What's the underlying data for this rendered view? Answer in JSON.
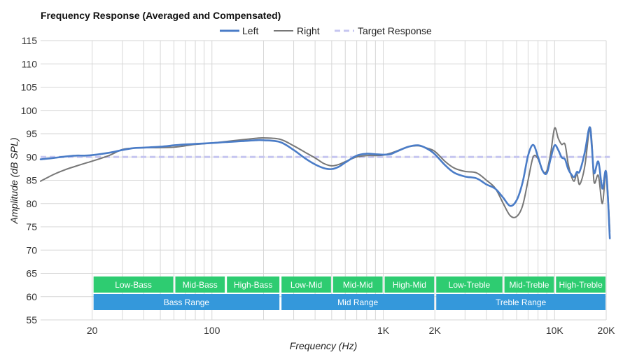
{
  "chart_data": {
    "type": "line",
    "title": "Frequency Response (Averaged and Compensated)",
    "xlabel": "Frequency (Hz)",
    "ylabel": "Amplitude (dB SPL)",
    "x_scale": "log",
    "xlim": [
      10,
      20000
    ],
    "ylim": [
      55,
      115
    ],
    "yticks": [
      55,
      60,
      65,
      70,
      75,
      80,
      85,
      90,
      95,
      100,
      105,
      110,
      115
    ],
    "xticks": [
      {
        "value": 20,
        "label": "20"
      },
      {
        "value": 100,
        "label": "100"
      },
      {
        "value": 1000,
        "label": "1K"
      },
      {
        "value": 2000,
        "label": "2K"
      },
      {
        "value": 10000,
        "label": "10K"
      },
      {
        "value": 20000,
        "label": "20K"
      }
    ],
    "grid": true,
    "legend_position": "top",
    "colors": {
      "left": "#4a7cc7",
      "right": "#777777",
      "target": "#c6c6f0",
      "band_green": "#2ecc71",
      "band_blue": "#3498db"
    },
    "series": [
      {
        "name": "Left",
        "x": [
          10,
          12,
          14,
          16,
          18,
          20,
          25,
          30,
          35,
          40,
          50,
          60,
          70,
          80,
          100,
          120,
          150,
          180,
          200,
          250,
          300,
          350,
          400,
          450,
          500,
          550,
          600,
          700,
          800,
          900,
          1000,
          1100,
          1200,
          1400,
          1600,
          1800,
          2000,
          2300,
          2600,
          3000,
          3500,
          4000,
          4500,
          5000,
          5500,
          6000,
          6500,
          7000,
          7500,
          8000,
          8500,
          9000,
          9500,
          10000,
          10500,
          11000,
          11500,
          12000,
          12500,
          13000,
          13500,
          14000,
          15000,
          16000,
          16500,
          17000,
          18000,
          19000,
          20000,
          21000
        ],
        "values": [
          89.5,
          89.8,
          90.1,
          90.3,
          90.3,
          90.4,
          90.9,
          91.5,
          91.9,
          92.0,
          92.2,
          92.5,
          92.7,
          92.8,
          93.0,
          93.2,
          93.4,
          93.6,
          93.6,
          93.2,
          91.5,
          89.7,
          88.4,
          87.6,
          87.4,
          87.9,
          88.8,
          90.3,
          90.7,
          90.6,
          90.5,
          90.6,
          91.2,
          92.2,
          92.5,
          91.8,
          90.6,
          88.2,
          86.6,
          85.8,
          85.4,
          84.1,
          83.2,
          81.3,
          79.5,
          80.7,
          84.5,
          90.3,
          92.6,
          90.0,
          87.1,
          86.5,
          89.8,
          92.5,
          91.5,
          89.9,
          89.5,
          87.4,
          86.3,
          85.7,
          86.8,
          86.9,
          91.0,
          96.4,
          92.0,
          86.5,
          89.0,
          83.2,
          86.7,
          72.5
        ]
      },
      {
        "name": "Right",
        "x": [
          10,
          12,
          14,
          16,
          18,
          20,
          25,
          30,
          35,
          40,
          50,
          60,
          70,
          80,
          100,
          120,
          150,
          180,
          200,
          250,
          300,
          350,
          400,
          450,
          500,
          550,
          600,
          700,
          800,
          900,
          1000,
          1100,
          1200,
          1400,
          1600,
          1800,
          2000,
          2300,
          2600,
          3000,
          3500,
          4000,
          4500,
          5000,
          5500,
          6000,
          6500,
          7000,
          7500,
          8000,
          8500,
          9000,
          9500,
          10000,
          10500,
          11000,
          11500,
          12000,
          12500,
          13000,
          13500,
          14000,
          15000,
          16000,
          16500,
          17000,
          18000,
          19000,
          20000,
          21000
        ],
        "values": [
          84.8,
          86.3,
          87.3,
          88.0,
          88.6,
          89.1,
          90.3,
          91.6,
          91.9,
          92.0,
          92.0,
          92.1,
          92.4,
          92.7,
          93.0,
          93.3,
          93.7,
          94.0,
          94.1,
          93.8,
          92.4,
          91.0,
          89.8,
          88.6,
          88.1,
          88.4,
          89.0,
          90.0,
          90.3,
          90.3,
          90.4,
          90.8,
          91.3,
          92.2,
          92.4,
          91.9,
          91.2,
          89.0,
          87.6,
          86.9,
          86.6,
          85.0,
          83.3,
          80.1,
          77.4,
          77.2,
          79.5,
          85.0,
          90.0,
          89.6,
          87.0,
          87.0,
          91.0,
          96.2,
          94.0,
          92.7,
          92.7,
          88.5,
          86.0,
          84.8,
          86.4,
          84.1,
          88.0,
          96.2,
          93.0,
          84.6,
          86.0,
          80.0,
          86.6,
          74.0
        ]
      },
      {
        "name": "Target Response",
        "x": [
          10,
          21000
        ],
        "values": [
          90,
          90
        ]
      }
    ],
    "bands": [
      {
        "label": "Low-Bass",
        "from": 20,
        "to": 60,
        "row": 1
      },
      {
        "label": "Mid-Bass",
        "from": 60,
        "to": 120,
        "row": 1
      },
      {
        "label": "High-Bass",
        "from": 120,
        "to": 250,
        "row": 1
      },
      {
        "label": "Low-Mid",
        "from": 250,
        "to": 500,
        "row": 1
      },
      {
        "label": "Mid-Mid",
        "from": 500,
        "to": 1000,
        "row": 1
      },
      {
        "label": "High-Mid",
        "from": 1000,
        "to": 2000,
        "row": 1
      },
      {
        "label": "Low-Treble",
        "from": 2000,
        "to": 5000,
        "row": 1
      },
      {
        "label": "Mid-Treble",
        "from": 5000,
        "to": 10000,
        "row": 1
      },
      {
        "label": "High-Treble",
        "from": 10000,
        "to": 20000,
        "row": 1
      },
      {
        "label": "Bass Range",
        "from": 20,
        "to": 250,
        "row": 2
      },
      {
        "label": "Mid Range",
        "from": 250,
        "to": 2000,
        "row": 2
      },
      {
        "label": "Treble Range",
        "from": 2000,
        "to": 20000,
        "row": 2
      }
    ]
  }
}
